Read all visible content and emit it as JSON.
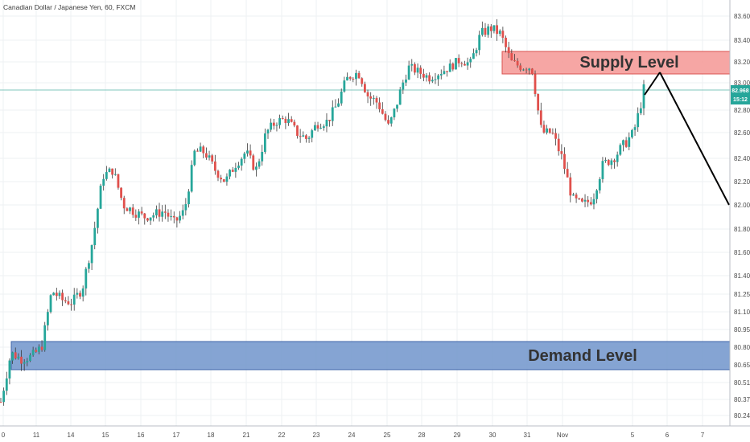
{
  "chart_title": "Canadian Dollar / Japanese Yen, 60, FXCM",
  "colors": {
    "up": "#26a69a",
    "down": "#e0504c",
    "wick": "#3a3a3a",
    "grid": "#eef0f3",
    "supply_fill": "#f59c9a",
    "supply_stroke": "#d9534f",
    "demand_fill": "#7b9ccf",
    "demand_stroke": "#3e64a8",
    "price_line": "#7fc7bd",
    "badge": "#26a69a",
    "projection": "#000000"
  },
  "zones": {
    "supply_label": "Supply Level",
    "demand_label": "Demand Level"
  },
  "current_price": {
    "price": "82.968",
    "countdown": "15:12"
  },
  "chart_data": {
    "type": "candlestick",
    "title": "Canadian Dollar / Japanese Yen, 60, FXCM",
    "y_ticks": [
      "83.600",
      "83.400",
      "83.200",
      "83.000",
      "82.800",
      "82.600",
      "82.400",
      "82.200",
      "82.000",
      "81.800",
      "81.600",
      "81.400",
      "81.250",
      "81.100",
      "80.950",
      "80.800",
      "80.650",
      "80.510",
      "80.370",
      "80.240"
    ],
    "x_ticks": [
      "0",
      "11",
      "14",
      "15",
      "16",
      "17",
      "18",
      "21",
      "22",
      "23",
      "24",
      "25",
      "28",
      "29",
      "30",
      "31",
      "Nov",
      "5",
      "6",
      "7"
    ],
    "price_line_value": 82.968,
    "supply_zone": [
      83.1,
      83.3
    ],
    "demand_zone": [
      80.64,
      80.86
    ],
    "projection": {
      "from": 83.13,
      "to": 81.98
    },
    "close_path": [
      80.35,
      80.75,
      80.7,
      80.72,
      80.8,
      81.28,
      81.2,
      81.18,
      81.3,
      81.7,
      82.25,
      82.3,
      82.0,
      81.95,
      81.9,
      81.92,
      81.95,
      81.85,
      81.95,
      82.45,
      82.45,
      82.3,
      82.2,
      82.35,
      82.45,
      82.3,
      82.6,
      82.7,
      82.72,
      82.6,
      82.55,
      82.68,
      82.7,
      82.85,
      83.05,
      83.1,
      82.9,
      82.85,
      82.65,
      82.9,
      83.15,
      83.1,
      83.05,
      83.1,
      83.15,
      83.22,
      83.18,
      83.45,
      83.5,
      83.45,
      83.2,
      83.15,
      83.15,
      82.6,
      82.6,
      82.4,
      82.05,
      82.0,
      82.05,
      82.35,
      82.4,
      82.5,
      82.6,
      82.95
    ]
  }
}
